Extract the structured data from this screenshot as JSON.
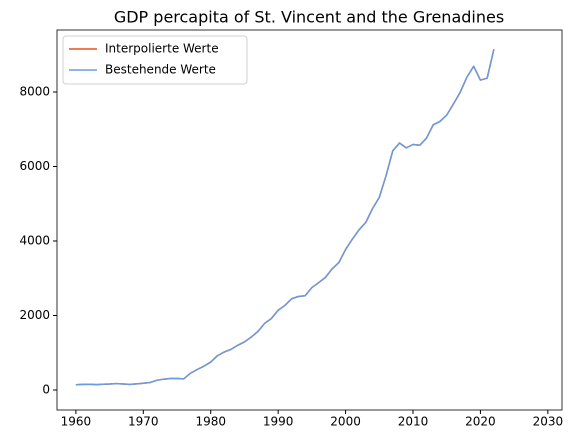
{
  "chart_data": {
    "type": "line",
    "title": "GDP percapita of St. Vincent and the Grenadines",
    "x": [
      1960,
      1961,
      1962,
      1963,
      1964,
      1965,
      1966,
      1967,
      1968,
      1969,
      1970,
      1971,
      1972,
      1973,
      1974,
      1975,
      1976,
      1977,
      1978,
      1979,
      1980,
      1981,
      1982,
      1983,
      1984,
      1985,
      1986,
      1987,
      1988,
      1989,
      1990,
      1991,
      1992,
      1993,
      1994,
      1995,
      1996,
      1997,
      1998,
      1999,
      2000,
      2001,
      2002,
      2003,
      2004,
      2005,
      2006,
      2007,
      2008,
      2009,
      2010,
      2011,
      2012,
      2013,
      2014,
      2015,
      2016,
      2017,
      2018,
      2019,
      2020,
      2021,
      2022
    ],
    "series": [
      {
        "name": "Interpolierte Werte",
        "color": "#e8501e",
        "values": [
          140,
          150,
          155,
          145,
          155,
          160,
          170,
          160,
          150,
          165,
          180,
          200,
          260,
          290,
          310,
          310,
          300,
          450,
          550,
          640,
          750,
          920,
          1020,
          1090,
          1200,
          1290,
          1420,
          1570,
          1790,
          1920,
          2140,
          2270,
          2450,
          2510,
          2530,
          2750,
          2880,
          3020,
          3250,
          3420,
          3770,
          4050,
          4300,
          4500,
          4870,
          5170,
          5750,
          6420,
          6630,
          6500,
          6590,
          6570,
          6760,
          7120,
          7210,
          7380,
          7680,
          7990,
          8400,
          8690,
          8320,
          8370,
          9150
        ]
      },
      {
        "name": "Bestehende Werte",
        "color": "#6a9be0",
        "values": [
          140,
          150,
          155,
          145,
          155,
          160,
          170,
          160,
          150,
          165,
          180,
          200,
          260,
          290,
          310,
          310,
          300,
          450,
          550,
          640,
          750,
          920,
          1020,
          1090,
          1200,
          1290,
          1420,
          1570,
          1790,
          1920,
          2140,
          2270,
          2450,
          2510,
          2530,
          2750,
          2880,
          3020,
          3250,
          3420,
          3770,
          4050,
          4300,
          4500,
          4870,
          5170,
          5750,
          6420,
          6630,
          6500,
          6590,
          6570,
          6760,
          7120,
          7210,
          7380,
          7680,
          7990,
          8400,
          8690,
          8320,
          8370,
          9150
        ]
      }
    ],
    "xlim": [
      1957.2,
      2032.1
    ],
    "xticks": [
      1960,
      1970,
      1980,
      1990,
      2000,
      2010,
      2020,
      2030
    ],
    "ylim": [
      -537,
      9664
    ],
    "yticks": [
      0,
      2000,
      4000,
      6000,
      8000
    ],
    "grid": false,
    "legend": "upper left"
  }
}
